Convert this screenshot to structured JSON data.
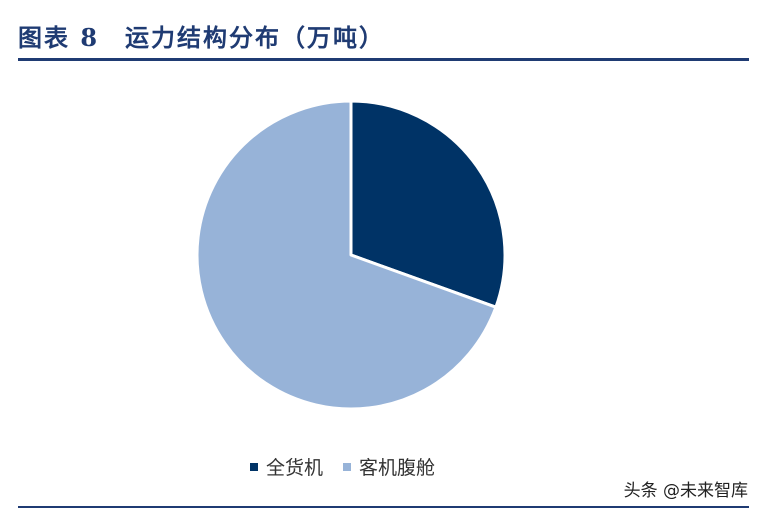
{
  "header": {
    "title": "图表 8　运力结构分布（万吨）"
  },
  "chart_data": {
    "type": "pie",
    "title": "图表 8　运力结构分布（万吨）",
    "slices": [
      {
        "label": "全货机",
        "value": 30.5,
        "color": "#003366"
      },
      {
        "label": "客机腹舱",
        "value": 69.5,
        "color": "#97b3d8"
      }
    ],
    "legend": {
      "position": "bottom"
    },
    "start_angle_deg": 0,
    "direction": "clockwise"
  },
  "watermark": {
    "text": "头条 @未来智库"
  }
}
